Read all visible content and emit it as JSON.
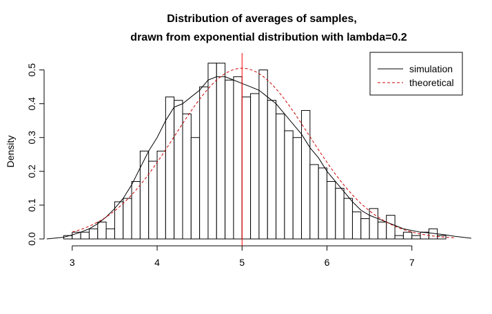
{
  "chart_data": {
    "type": "histogram",
    "title": [
      "Distribution of averages of samples,",
      "drawn from exponential distribution with lambda=0.2"
    ],
    "xlabel": "",
    "ylabel": "Density",
    "xlim": [
      2.75,
      7.7
    ],
    "ylim": [
      0,
      0.55
    ],
    "x_ticks": [
      3,
      4,
      5,
      6,
      7
    ],
    "y_ticks": [
      0.0,
      0.1,
      0.2,
      0.3,
      0.4,
      0.5
    ],
    "y_tick_labels": [
      "0.0",
      "0.1",
      "0.2",
      "0.3",
      "0.4",
      "0.5"
    ],
    "bins": {
      "start": 2.9,
      "width": 0.1,
      "density": [
        0.01,
        0.02,
        0.02,
        0.03,
        0.05,
        0.03,
        0.11,
        0.12,
        0.17,
        0.26,
        0.23,
        0.26,
        0.42,
        0.41,
        0.37,
        0.3,
        0.45,
        0.52,
        0.52,
        0.47,
        0.48,
        0.42,
        0.43,
        0.5,
        0.41,
        0.37,
        0.32,
        0.3,
        0.38,
        0.22,
        0.21,
        0.17,
        0.15,
        0.12,
        0.08,
        0.06,
        0.09,
        0.05,
        0.07,
        0.01,
        0.02,
        0.01,
        0.02,
        0.03,
        0.01
      ]
    },
    "series": [
      {
        "name": "simulation",
        "style": "solid",
        "color": "#000000",
        "x": [
          2.7,
          2.9,
          3.0,
          3.1,
          3.2,
          3.3,
          3.4,
          3.5,
          3.6,
          3.7,
          3.8,
          3.9,
          4.0,
          4.1,
          4.2,
          4.3,
          4.4,
          4.5,
          4.6,
          4.7,
          4.8,
          4.9,
          5.0,
          5.1,
          5.2,
          5.3,
          5.4,
          5.5,
          5.6,
          5.7,
          5.8,
          5.9,
          6.0,
          6.1,
          6.2,
          6.3,
          6.4,
          6.5,
          6.6,
          6.7,
          6.8,
          6.9,
          7.0,
          7.1,
          7.2,
          7.3,
          7.4,
          7.5,
          7.7
        ],
        "y": [
          0.0,
          0.005,
          0.012,
          0.02,
          0.03,
          0.045,
          0.065,
          0.09,
          0.12,
          0.16,
          0.21,
          0.26,
          0.3,
          0.35,
          0.39,
          0.4,
          0.42,
          0.44,
          0.47,
          0.48,
          0.48,
          0.47,
          0.46,
          0.45,
          0.44,
          0.42,
          0.4,
          0.37,
          0.34,
          0.31,
          0.27,
          0.24,
          0.2,
          0.17,
          0.14,
          0.11,
          0.085,
          0.07,
          0.06,
          0.05,
          0.04,
          0.03,
          0.025,
          0.02,
          0.018,
          0.015,
          0.012,
          0.008,
          0.002
        ]
      },
      {
        "name": "theoretical",
        "style": "dashed",
        "color": "#cc0000",
        "distribution": "normal",
        "mean": 5,
        "sd": 0.79,
        "x_range": [
          3.0,
          7.5
        ]
      }
    ],
    "vline": {
      "x": 5,
      "color": "#ff0000"
    },
    "legend": {
      "position": "top-right",
      "entries": [
        "simulation",
        "theoretical"
      ]
    }
  }
}
